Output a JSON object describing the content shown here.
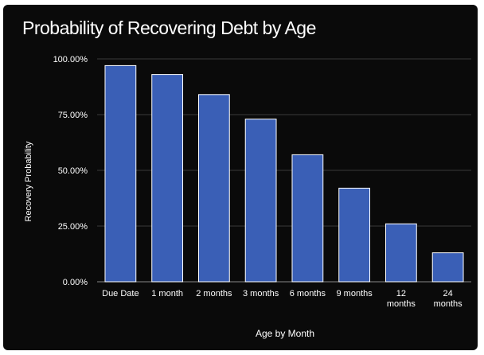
{
  "colors": {
    "background": "#0a0a0a",
    "bar": "#3a5fb6",
    "bar_outline": "#ffffff",
    "gridline": "#3a3a3a",
    "text": "#ffffff"
  },
  "chart_data": {
    "type": "bar",
    "title": "Probability of Recovering Debt by Age",
    "xlabel": "Age by Month",
    "ylabel": "Recovery Probability",
    "categories": [
      "Due Date",
      "1 month",
      "2 months",
      "3 months",
      "6 months",
      "9 months",
      "12 months",
      "24 months"
    ],
    "values": [
      97,
      93,
      84,
      73,
      57,
      42,
      26,
      13
    ],
    "y_unit": "%",
    "ylim": [
      0,
      100
    ],
    "yticks": [
      "0.00%",
      "25.00%",
      "50.00%",
      "75.00%",
      "100.00%"
    ],
    "ytick_values": [
      0,
      25,
      50,
      75,
      100
    ],
    "grid": true,
    "legend": "none"
  }
}
